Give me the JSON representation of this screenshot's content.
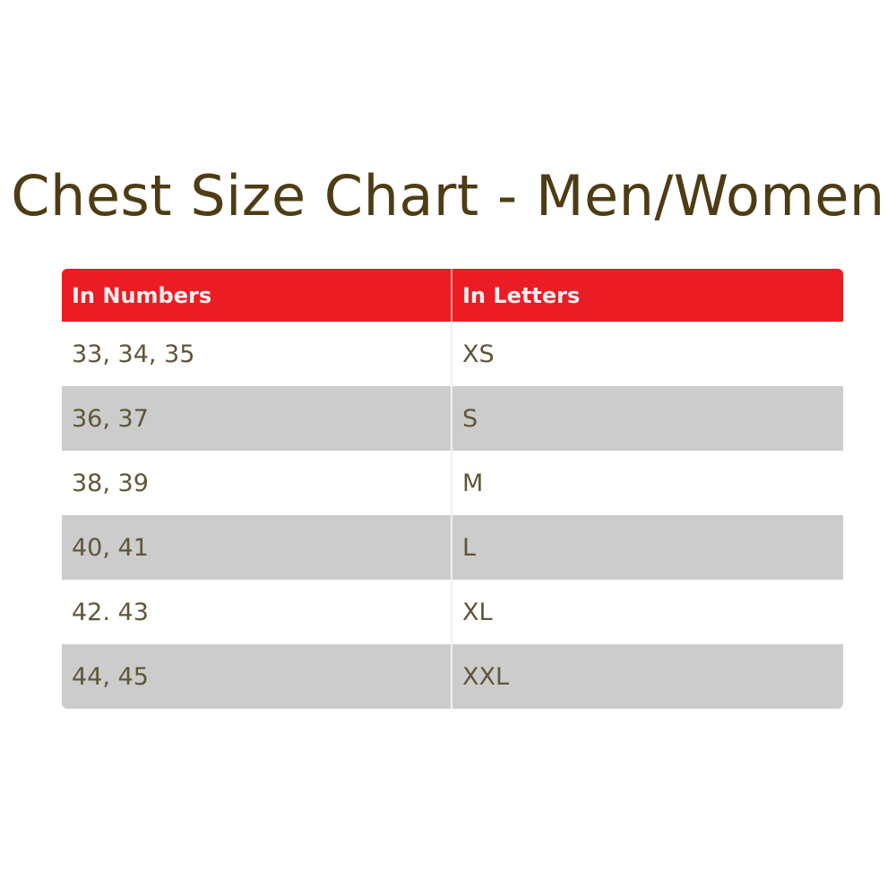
{
  "title": "Chest Size Chart - Men/Women",
  "table": {
    "headers": [
      "In Numbers",
      "In Letters"
    ],
    "rows": [
      [
        "33, 34, 35",
        "XS"
      ],
      [
        "36, 37",
        "S"
      ],
      [
        "38, 39",
        "M"
      ],
      [
        "40, 41",
        "L"
      ],
      [
        "42. 43",
        "XL"
      ],
      [
        "44, 45",
        "XXL"
      ]
    ]
  },
  "colors": {
    "header_bg": "#ec1c24",
    "alt_row_bg": "#cccccc",
    "title": "#4e3c14"
  }
}
